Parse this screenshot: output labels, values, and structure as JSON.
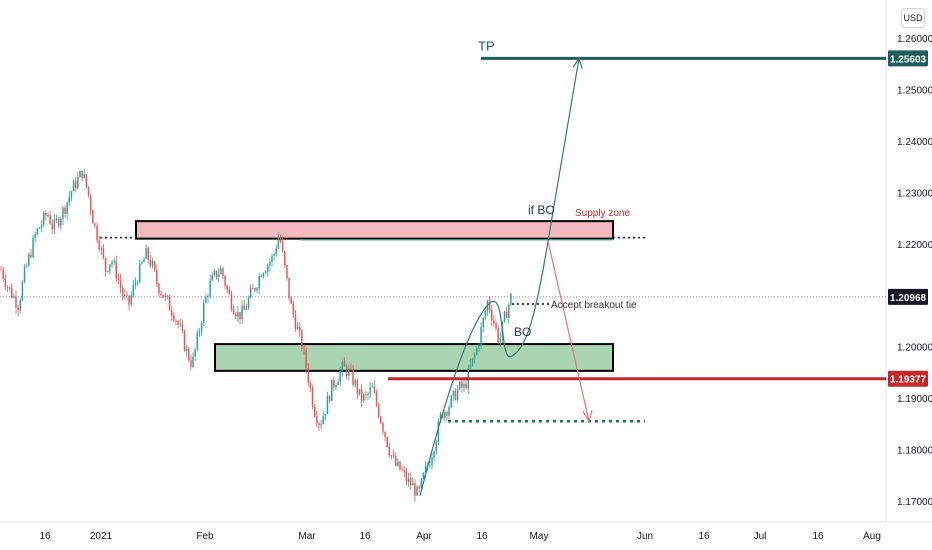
{
  "currency_badge": "USD",
  "colors": {
    "up_candle": "#26a69a",
    "down_candle": "#ef5350",
    "tp_line": "#1f5f5b",
    "support_line": "#c62828",
    "supply_zone": "#f4b9bf",
    "demand_zone": "#a9d4b0",
    "path_up": "#2e7d6e",
    "path_down": "#e57373"
  },
  "chart_data": {
    "type": "candlestick",
    "instrument_price_axis": "USD",
    "y_axis": {
      "ticks": [
        "1.26000",
        "1.25000",
        "1.24000",
        "1.23000",
        "1.22000",
        "1.20000",
        "1.19000",
        "1.18000",
        "1.17000"
      ],
      "range": [
        1.168,
        1.271
      ]
    },
    "x_axis": {
      "ticks": [
        "16",
        "2021",
        "Feb",
        "Mar",
        "16",
        "Apr",
        "16",
        "May",
        "Jun",
        "16",
        "Jul",
        "16",
        "Aug"
      ]
    },
    "price_labels": [
      {
        "value": "1.25603",
        "role": "TP"
      },
      {
        "value": "1.20968",
        "role": "last price"
      },
      {
        "value": "1.19377",
        "role": "support"
      }
    ],
    "annotations": {
      "tp": "TP",
      "if_bo": "if BO",
      "supply_zone": "Supply zone",
      "accept_breakout": "Accept breakout tie",
      "bo": "BO"
    },
    "levels": {
      "tp": 1.25603,
      "last": 1.20968,
      "support": 1.19377,
      "upper_dotted": 1.2212,
      "lower_dotted": 1.1855,
      "accept_dotted": 1.2083
    },
    "zones": [
      {
        "name": "Supply zone",
        "top": 1.2244,
        "bottom": 1.221
      },
      {
        "name": "Demand zone",
        "top": 1.2005,
        "bottom": 1.1953
      }
    ],
    "projections": [
      {
        "name": "if BO",
        "to": 1.25603
      },
      {
        "name": "fall",
        "to": 1.1855
      }
    ],
    "close_path": [
      [
        1.215,
        1.212,
        1.21,
        1.208,
        1.214,
        1.218,
        1.222,
        1.224,
        1.226,
        1.223,
        1.225,
        1.227,
        1.23,
        1.232,
        1.234,
        1.23,
        1.224,
        1.22,
        1.215,
        1.217,
        1.214,
        1.21,
        1.208,
        1.212,
        1.215,
        1.218,
        1.216,
        1.212,
        1.21,
        1.208,
        1.206,
        1.203,
        1.199,
        1.1965,
        1.202,
        1.208,
        1.212,
        1.214,
        1.215,
        1.211,
        1.208,
        1.206,
        1.207,
        1.21,
        1.212,
        1.215,
        1.216,
        1.2175,
        1.222,
        1.215,
        1.208,
        1.204,
        1.2,
        1.194,
        1.188,
        1.185,
        1.188,
        1.192,
        1.194,
        1.196,
        1.195,
        1.193,
        1.19,
        1.19,
        1.192,
        1.188,
        1.184,
        1.18,
        1.177,
        1.176,
        1.174,
        1.173,
        1.171,
        1.175,
        1.178,
        1.182,
        1.187,
        1.188,
        1.19,
        1.192,
        1.192,
        1.196,
        1.199,
        1.204,
        1.209,
        1.205,
        1.201,
        1.206,
        1.2096
      ]
    ]
  }
}
